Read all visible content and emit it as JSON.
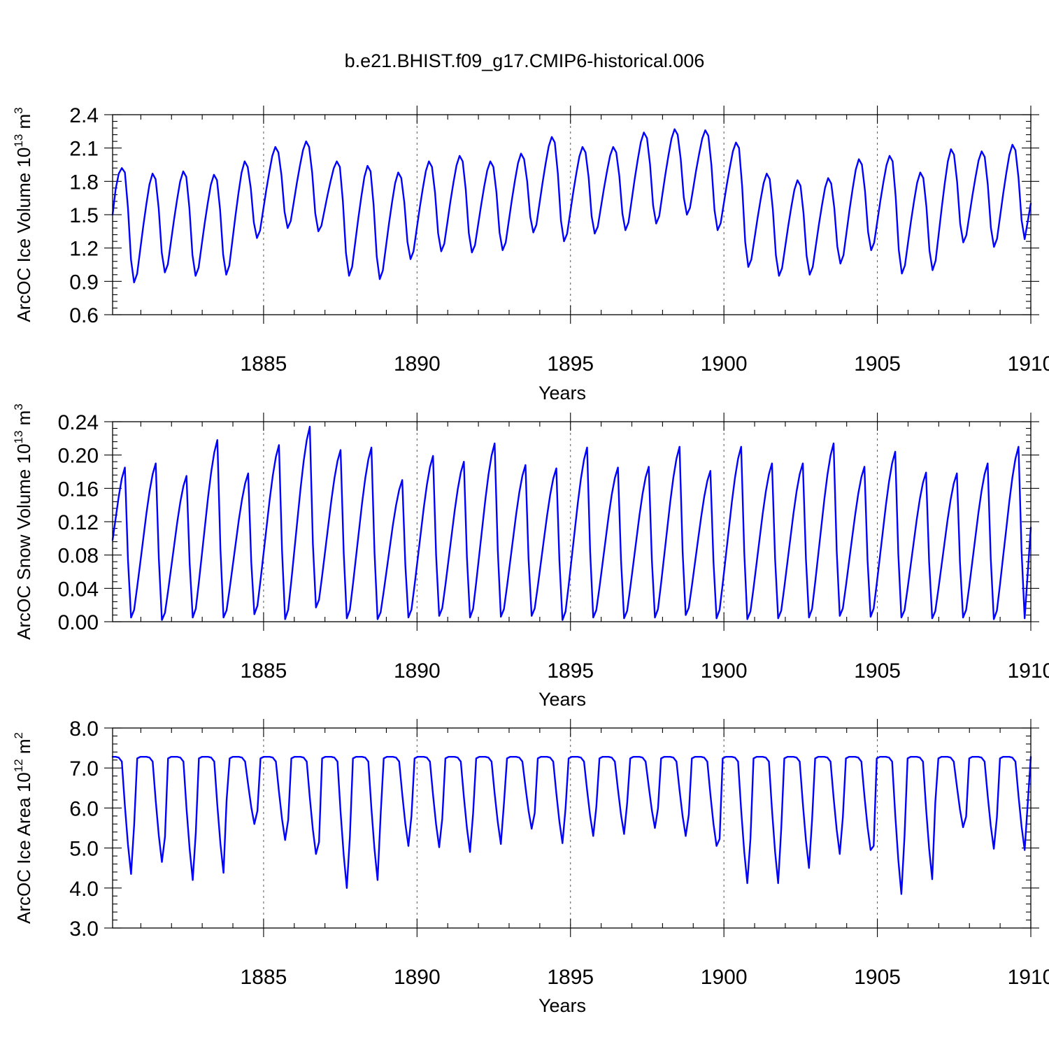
{
  "title": "b.e21.BHIST.f09_g17.CMIP6-historical.006",
  "colors": {
    "series": "#0000ff",
    "axis": "#000000",
    "gridline": "#555555"
  },
  "chart_data": [
    {
      "type": "line",
      "ylabel_main": "ArcOC Ice Volume 10",
      "ylabel_exp": "13",
      "ylabel_unit": " m",
      "ylabel_unit_exp": "3",
      "xlabel": "Years",
      "xlim": [
        1880.08,
        1910.0
      ],
      "ylim": [
        0.6,
        2.4
      ],
      "yticks": [
        0.6,
        0.9,
        1.2,
        1.5,
        1.8,
        2.1,
        2.4
      ],
      "ytick_labels": [
        "0.6",
        "0.9",
        "1.2",
        "1.5",
        "1.8",
        "2.1",
        "2.4"
      ],
      "xticks": [
        1885,
        1890,
        1895,
        1900,
        1905,
        1910
      ],
      "xtick_labels": [
        "1885",
        "1890",
        "1895",
        "1900",
        "1905",
        "1910"
      ],
      "vlines": [
        1885,
        1890,
        1895,
        1900,
        1905
      ],
      "grid": false,
      "legend": "none",
      "seasonal": {
        "kind": "volume",
        "peaks": [
          1.92,
          1.87,
          1.89,
          1.86,
          1.98,
          2.11,
          2.16,
          1.98,
          1.94,
          1.88,
          1.98,
          2.03,
          1.98,
          2.05,
          2.2,
          2.11,
          2.11,
          2.24,
          2.27,
          2.26,
          2.15,
          1.87,
          1.81,
          1.83,
          2.0,
          2.03,
          1.88,
          2.09,
          2.07,
          2.13
        ],
        "troughs": [
          0.89,
          0.98,
          0.95,
          0.96,
          1.29,
          1.38,
          1.35,
          0.95,
          0.92,
          1.1,
          1.17,
          1.16,
          1.18,
          1.34,
          1.26,
          1.33,
          1.36,
          1.42,
          1.5,
          1.36,
          1.03,
          0.95,
          0.96,
          1.06,
          1.18,
          0.97,
          1.0,
          1.25,
          1.21,
          1.28
        ],
        "start": 1.5,
        "end": 1.6
      }
    },
    {
      "type": "line",
      "ylabel_main": "ArcOC Snow Volume 10",
      "ylabel_exp": "13",
      "ylabel_unit": " m",
      "ylabel_unit_exp": "3",
      "xlabel": "Years",
      "xlim": [
        1880.08,
        1910.0
      ],
      "ylim": [
        0.0,
        0.24
      ],
      "yticks": [
        0.0,
        0.04,
        0.08,
        0.12,
        0.16,
        0.2,
        0.24
      ],
      "ytick_labels": [
        "0.00",
        "0.04",
        "0.08",
        "0.12",
        "0.16",
        "0.20",
        "0.24"
      ],
      "xticks": [
        1885,
        1890,
        1895,
        1900,
        1905,
        1910
      ],
      "xtick_labels": [
        "1885",
        "1890",
        "1895",
        "1900",
        "1905",
        "1910"
      ],
      "vlines": [
        1885,
        1890,
        1895,
        1900,
        1905
      ],
      "grid": false,
      "legend": "none",
      "seasonal": {
        "kind": "snow",
        "peaks": [
          0.185,
          0.19,
          0.175,
          0.218,
          0.178,
          0.212,
          0.234,
          0.206,
          0.209,
          0.17,
          0.199,
          0.192,
          0.214,
          0.188,
          0.184,
          0.209,
          0.185,
          0.186,
          0.21,
          0.181,
          0.21,
          0.19,
          0.19,
          0.214,
          0.186,
          0.204,
          0.179,
          0.178,
          0.19,
          0.21
        ],
        "mins": [
          0.005,
          0.002,
          0.005,
          0.005,
          0.009,
          0.003,
          0.017,
          0.004,
          0.003,
          0.005,
          0.007,
          0.005,
          0.006,
          0.007,
          0.002,
          0.005,
          0.004,
          0.005,
          0.008,
          0.004,
          0.003,
          0.004,
          0.005,
          0.007,
          0.006,
          0.005,
          0.004,
          0.005,
          0.003,
          0.004
        ],
        "start": 0.098,
        "end": 0.113
      }
    },
    {
      "type": "line",
      "ylabel_main": "ArcOC Ice Area 10",
      "ylabel_exp": "12",
      "ylabel_unit": " m",
      "ylabel_unit_exp": "2",
      "xlabel": "Years",
      "xlim": [
        1880.08,
        1910.0
      ],
      "ylim": [
        3.0,
        8.0
      ],
      "yticks": [
        3.0,
        4.0,
        5.0,
        6.0,
        7.0,
        8.0
      ],
      "ytick_labels": [
        "3.0",
        "4.0",
        "5.0",
        "6.0",
        "7.0",
        "8.0"
      ],
      "xticks": [
        1885,
        1890,
        1895,
        1900,
        1905,
        1910
      ],
      "xtick_labels": [
        "1885",
        "1890",
        "1895",
        "1900",
        "1905",
        "1910"
      ],
      "vlines": [
        1885,
        1890,
        1895,
        1900,
        1905
      ],
      "grid": false,
      "legend": "none",
      "seasonal": {
        "kind": "area",
        "plateau": 7.28,
        "mins": [
          4.35,
          4.65,
          4.2,
          4.38,
          5.6,
          5.2,
          4.85,
          4.0,
          4.2,
          5.05,
          5.02,
          4.9,
          5.1,
          5.48,
          5.12,
          5.3,
          5.35,
          5.5,
          5.3,
          5.05,
          4.12,
          4.12,
          4.5,
          4.85,
          4.95,
          3.85,
          4.22,
          5.52,
          4.98,
          4.95
        ],
        "start": 7.28,
        "end": 7.28
      }
    }
  ]
}
